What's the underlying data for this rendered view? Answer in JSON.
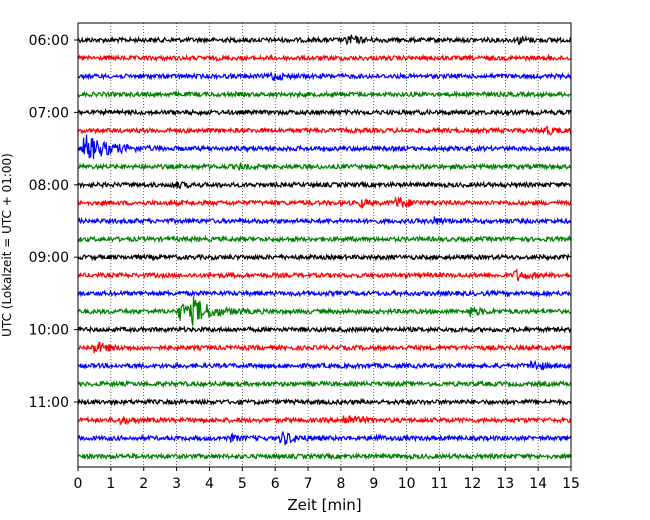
{
  "chart_data": {
    "type": "line",
    "title": "",
    "xlabel": "Zeit  [min]",
    "ylabel": "UTC (Lokalzeit = UTC + 01:00)",
    "xlim": [
      0,
      15
    ],
    "x_ticks": [
      "0",
      "1",
      "2",
      "3",
      "4",
      "5",
      "6",
      "7",
      "8",
      "9",
      "10",
      "11",
      "12",
      "13",
      "14",
      "15"
    ],
    "y_ticks": [
      "06:00",
      "07:00",
      "08:00",
      "09:00",
      "10:00",
      "11:00"
    ],
    "row_interval_min": 15,
    "grid": "vertical dotted",
    "legend": "none",
    "colors": [
      "#000000",
      "#ff0000",
      "#0000ff",
      "#008000"
    ],
    "series": [
      {
        "start": "06:00",
        "color": "#000000",
        "events": [
          {
            "t": 8.2,
            "amp": 0.3
          },
          {
            "t": 13.4,
            "amp": 0.2
          }
        ]
      },
      {
        "start": "06:15",
        "color": "#ff0000",
        "events": []
      },
      {
        "start": "06:30",
        "color": "#0000ff",
        "events": [
          {
            "t": 5.9,
            "amp": 0.25
          }
        ]
      },
      {
        "start": "06:45",
        "color": "#008000",
        "events": []
      },
      {
        "start": "07:00",
        "color": "#000000",
        "events": []
      },
      {
        "start": "07:15",
        "color": "#ff0000",
        "events": [
          {
            "t": 14.2,
            "amp": 0.25
          }
        ]
      },
      {
        "start": "07:30",
        "color": "#0000ff",
        "events": [
          {
            "t": 0.2,
            "amp": 0.85
          }
        ]
      },
      {
        "start": "07:45",
        "color": "#008000",
        "events": [
          {
            "t": 4.9,
            "amp": 0.15
          }
        ]
      },
      {
        "start": "08:00",
        "color": "#000000",
        "events": [
          {
            "t": 2.9,
            "amp": 0.2
          }
        ]
      },
      {
        "start": "08:15",
        "color": "#ff0000",
        "events": [
          {
            "t": 8.6,
            "amp": 0.2
          },
          {
            "t": 9.7,
            "amp": 0.35
          }
        ]
      },
      {
        "start": "08:30",
        "color": "#0000ff",
        "events": [
          {
            "t": 10.8,
            "amp": 0.2
          }
        ]
      },
      {
        "start": "08:45",
        "color": "#008000",
        "events": []
      },
      {
        "start": "09:00",
        "color": "#000000",
        "events": []
      },
      {
        "start": "09:15",
        "color": "#ff0000",
        "events": [
          {
            "t": 13.3,
            "amp": 0.3
          }
        ]
      },
      {
        "start": "09:30",
        "color": "#0000ff",
        "events": []
      },
      {
        "start": "09:45",
        "color": "#008000",
        "events": [
          {
            "t": 3.1,
            "amp": 0.5
          },
          {
            "t": 3.5,
            "amp": 0.65
          },
          {
            "t": 11.9,
            "amp": 0.3
          }
        ]
      },
      {
        "start": "10:00",
        "color": "#000000",
        "events": []
      },
      {
        "start": "10:15",
        "color": "#ff0000",
        "events": [
          {
            "t": 0.5,
            "amp": 0.35
          }
        ]
      },
      {
        "start": "10:30",
        "color": "#0000ff",
        "events": [
          {
            "t": 13.8,
            "amp": 0.3
          }
        ]
      },
      {
        "start": "10:45",
        "color": "#008000",
        "events": []
      },
      {
        "start": "11:00",
        "color": "#000000",
        "events": []
      },
      {
        "start": "11:15",
        "color": "#ff0000",
        "events": [
          {
            "t": 1.3,
            "amp": 0.2
          },
          {
            "t": 8.1,
            "amp": 0.35
          }
        ]
      },
      {
        "start": "11:30",
        "color": "#0000ff",
        "events": [
          {
            "t": 4.6,
            "amp": 0.2
          },
          {
            "t": 6.2,
            "amp": 0.4
          },
          {
            "t": 9.0,
            "amp": 0.15
          }
        ]
      },
      {
        "start": "11:45",
        "color": "#008000",
        "events": []
      }
    ]
  }
}
